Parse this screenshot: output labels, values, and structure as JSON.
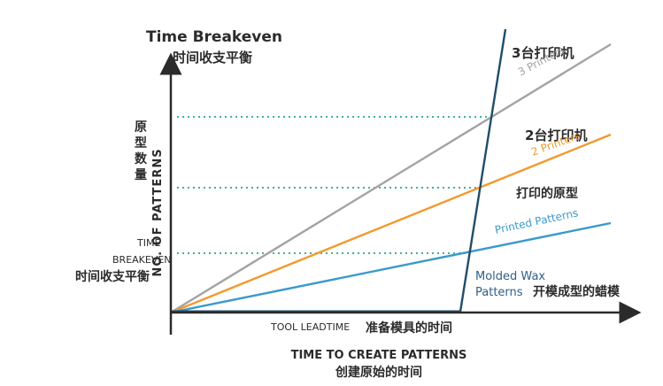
{
  "title": "Time Breakeven",
  "title_cn": "时间收支平衡",
  "y_axis_label": "NO. OF PATTERNS",
  "y_axis_label_cn": [
    "原",
    "型",
    "数",
    "量"
  ],
  "x_axis_label": "TIME TO CREATE PATTERNS",
  "x_axis_label_cn": "创建原始的时间",
  "breakeven_label_line1": "TIME",
  "breakeven_label_line2": "BREAKEVEN",
  "breakeven_label_cn": "时间收支平衡",
  "tool_leadtime_label": "TOOL LEADTIME",
  "tool_leadtime_label_cn": "准备模具的时间",
  "series": {
    "printers3": {
      "label_num": "3",
      "label_cn": "台打印机",
      "label_en": "3 Printers",
      "color": "#a3a3a3"
    },
    "printers2": {
      "label_num": "2",
      "label_cn": "台打印机",
      "label_en": "2 Printers",
      "color": "#f29a2e"
    },
    "printed": {
      "label_cn": "打印的原型",
      "label_en": "Printed Patterns",
      "color": "#3a9acb"
    },
    "molded": {
      "label_en_line1": "Molded Wax",
      "label_en_line2": "Patterns",
      "label_cn": "开模成型的蜡模",
      "color": "#1f4e6a"
    }
  },
  "colors": {
    "axis": "#2b2b2b",
    "guide": "#3bb3a0",
    "text_dark": "#2b2b2b",
    "molded_text": "#2f5f86"
  }
}
